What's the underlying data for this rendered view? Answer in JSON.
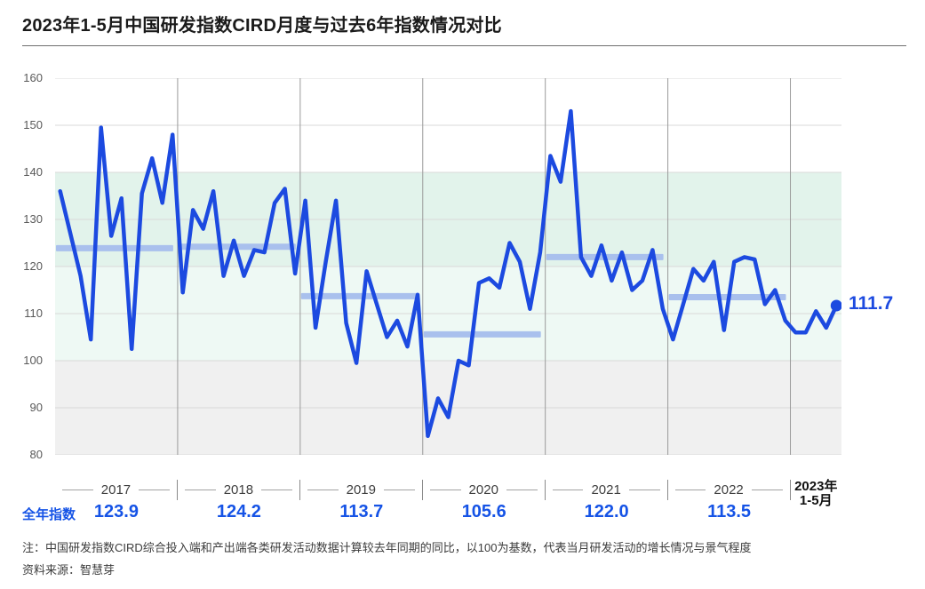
{
  "title": "2023年1-5月中国研发指数CIRD月度与过去6年指数情况对比",
  "endpoint_label": "111.7",
  "annual_index_label": "全年指数",
  "notes": [
    "注：中国研发指数CIRD综合投入端和产出端各类研发活动数据计算较去年同期的同比，以100为基数，代表当月研发活动的增长情况与景气程度",
    "资料来源：智慧芽"
  ],
  "y_axis": {
    "min": 80,
    "max": 160,
    "step": 10,
    "ticks": [
      "160",
      "150",
      "140",
      "130",
      "120",
      "110",
      "100",
      "90",
      "80"
    ]
  },
  "chart_data": {
    "type": "line",
    "title": "2023年1-5月中国研发指数CIRD月度与过去6年指数情况对比",
    "xlabel": "",
    "ylabel": "",
    "ylim": [
      80,
      160
    ],
    "grid": true,
    "legend_position": "none",
    "endpoint_value": 111.7,
    "years": [
      {
        "label": "2017",
        "annual_index": "123.9",
        "values": [
          136,
          127,
          118,
          104.5,
          149.5,
          126.5,
          134.5,
          102.5,
          135.5,
          143,
          133.5,
          148
        ]
      },
      {
        "label": "2018",
        "annual_index": "124.2",
        "values": [
          114.5,
          132,
          128,
          136,
          118,
          125.5,
          118,
          123.5,
          123,
          133.5,
          136.5,
          118.5
        ]
      },
      {
        "label": "2019",
        "annual_index": "113.7",
        "values": [
          134,
          107,
          121,
          134,
          108,
          99.5,
          119,
          112,
          105,
          108.5,
          103,
          114
        ]
      },
      {
        "label": "2020",
        "annual_index": "105.6",
        "values": [
          84,
          92,
          88,
          100,
          99,
          116.5,
          117.5,
          115.5,
          125,
          121,
          111,
          123
        ]
      },
      {
        "label": "2021",
        "annual_index": "122.0",
        "values": [
          143.5,
          138,
          153,
          122,
          118,
          124.5,
          117,
          123,
          115,
          117,
          123.5,
          111
        ]
      },
      {
        "label": "2022",
        "annual_index": "113.5",
        "values": [
          104.5,
          112,
          119.5,
          117,
          121,
          106.5,
          121,
          122,
          121.5,
          112,
          115,
          108.5
        ]
      },
      {
        "label": "2023年",
        "label_line2": "1-5月",
        "annual_index": null,
        "values": [
          106,
          106,
          110.5,
          107,
          111.7
        ]
      }
    ],
    "bands": [
      {
        "from": 140,
        "to": 120,
        "color": "#e2f3eb"
      },
      {
        "from": 120,
        "to": 100,
        "color": "#eef9f4"
      },
      {
        "from": 100,
        "to": 80,
        "color": "#f0f0f0"
      }
    ],
    "colors": {
      "line": "#1c4ae0",
      "dot": "#1c4ae0",
      "avg_bar": "#a9c0ed",
      "gridline": "#d9d9d9",
      "divider": "#9a9a9a",
      "blue_text": "#1553e6"
    }
  }
}
